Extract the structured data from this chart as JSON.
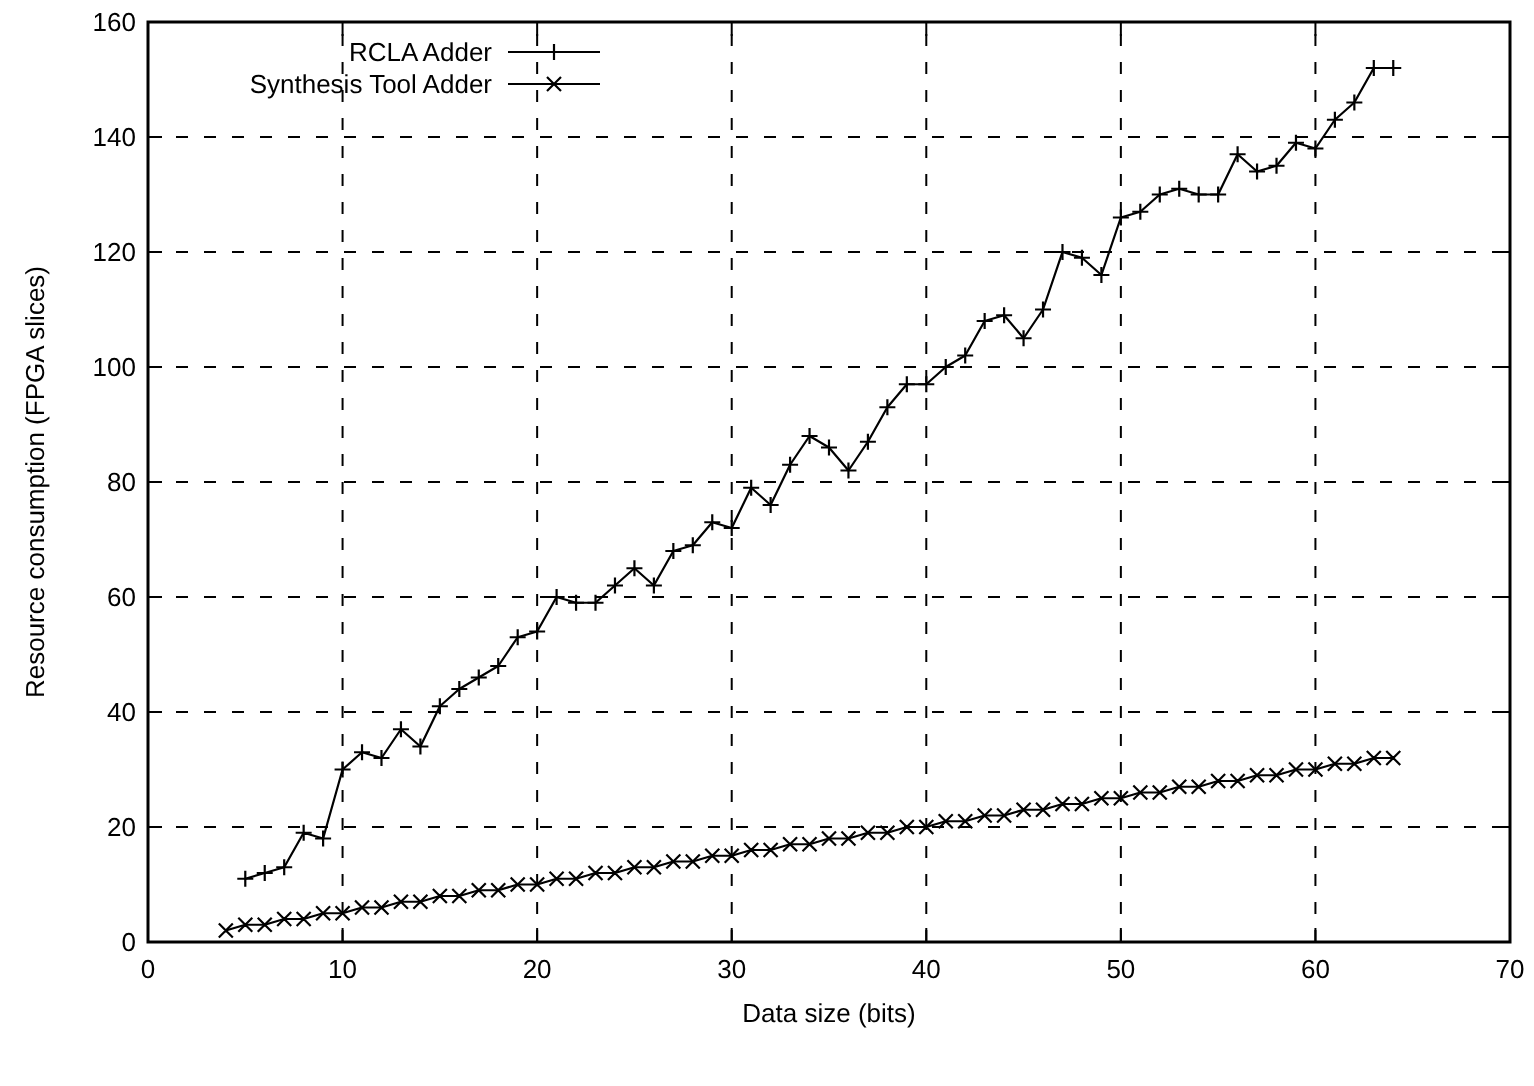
{
  "chart_data": {
    "type": "line",
    "xlabel": "Data size (bits)",
    "ylabel": "Resource consumption (FPGA slices)",
    "xlim": [
      0,
      70
    ],
    "ylim": [
      0,
      160
    ],
    "xticks": [
      0,
      10,
      20,
      30,
      40,
      50,
      60,
      70
    ],
    "yticks": [
      0,
      20,
      40,
      60,
      80,
      100,
      120,
      140,
      160
    ],
    "grid": true,
    "legend": "top left",
    "line_style": "solid",
    "series": [
      {
        "name": "RCLA Adder",
        "color": "#000000",
        "marker": "plus",
        "x": [
          5,
          6,
          7,
          8,
          9,
          10,
          11,
          12,
          13,
          14,
          15,
          16,
          17,
          18,
          19,
          20,
          21,
          22,
          23,
          24,
          25,
          26,
          27,
          28,
          29,
          30,
          31,
          32,
          33,
          34,
          35,
          36,
          37,
          38,
          39,
          40,
          41,
          42,
          43,
          44,
          45,
          46,
          47,
          48,
          49,
          50,
          51,
          52,
          53,
          54,
          55,
          56,
          57,
          58,
          59,
          60,
          61,
          62,
          63,
          64
        ],
        "values": [
          11,
          12,
          13,
          19,
          18,
          30,
          33,
          32,
          37,
          34,
          41,
          44,
          46,
          48,
          53,
          54,
          60,
          59,
          59,
          62,
          65,
          62,
          68,
          69,
          73,
          72,
          79,
          76,
          83,
          88,
          86,
          82,
          87,
          93,
          97,
          97,
          100,
          102,
          108,
          109,
          105,
          110,
          120,
          119,
          116,
          126,
          127,
          130,
          131,
          130,
          130,
          137,
          134,
          135,
          139,
          138,
          143,
          146,
          152,
          152
        ]
      },
      {
        "name": "Synthesis Tool Adder",
        "color": "#000000",
        "marker": "cross",
        "x": [
          4,
          5,
          6,
          7,
          8,
          9,
          10,
          11,
          12,
          13,
          14,
          15,
          16,
          17,
          18,
          19,
          20,
          21,
          22,
          23,
          24,
          25,
          26,
          27,
          28,
          29,
          30,
          31,
          32,
          33,
          34,
          35,
          36,
          37,
          38,
          39,
          40,
          41,
          42,
          43,
          44,
          45,
          46,
          47,
          48,
          49,
          50,
          51,
          52,
          53,
          54,
          55,
          56,
          57,
          58,
          59,
          60,
          61,
          62,
          63,
          64
        ],
        "values": [
          2,
          3,
          3,
          4,
          4,
          5,
          5,
          6,
          6,
          7,
          7,
          8,
          8,
          9,
          9,
          10,
          10,
          11,
          11,
          12,
          12,
          13,
          13,
          14,
          14,
          15,
          15,
          16,
          16,
          17,
          17,
          18,
          18,
          19,
          19,
          20,
          20,
          21,
          21,
          22,
          22,
          23,
          23,
          24,
          24,
          25,
          25,
          26,
          26,
          27,
          27,
          28,
          28,
          29,
          29,
          30,
          30,
          31,
          31,
          32,
          32
        ]
      }
    ]
  }
}
